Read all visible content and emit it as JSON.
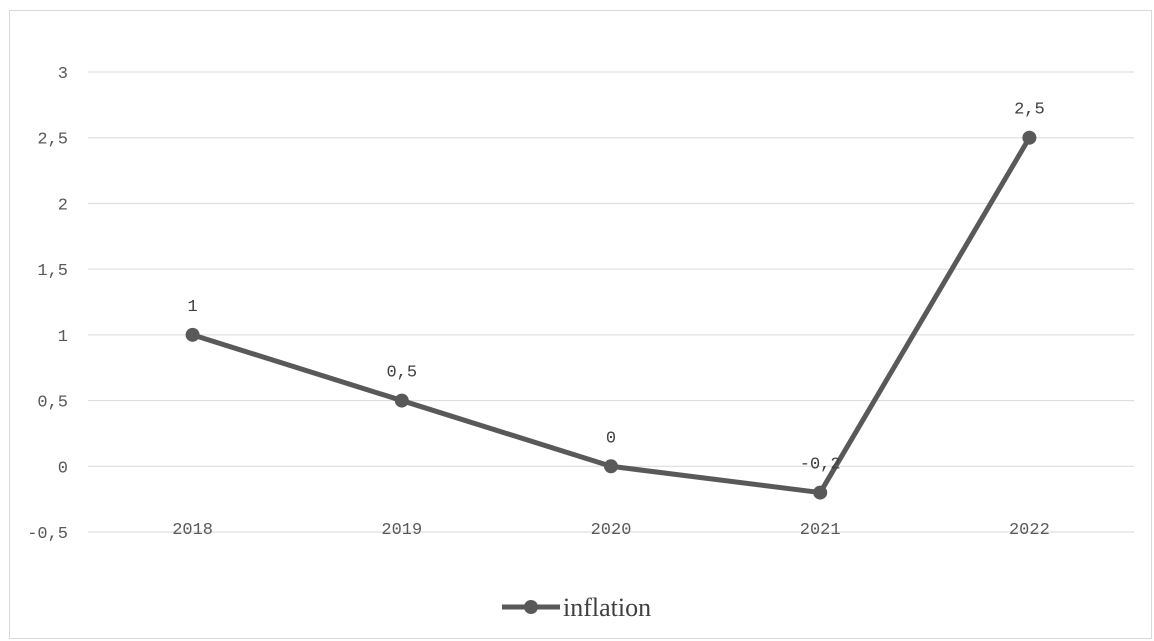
{
  "chart_data": {
    "type": "line",
    "title": "",
    "xlabel": "",
    "ylabel": "",
    "categories": [
      "2018",
      "2019",
      "2020",
      "2021",
      "2022"
    ],
    "series": [
      {
        "name": "inflation",
        "values": [
          1,
          0.5,
          0,
          -0.2,
          2.5
        ],
        "data_labels": [
          "1",
          "0,5",
          "0",
          "-0,2",
          "2,5"
        ],
        "color": "#595959"
      }
    ],
    "ylim": [
      -0.5,
      3
    ],
    "y_ticks": [
      3,
      2.5,
      2,
      1.5,
      1,
      0.5,
      0,
      -0.5
    ],
    "y_tick_labels": [
      "3",
      "2,5",
      "2",
      "1,5",
      "1",
      "0,5",
      "0",
      "-0,5"
    ],
    "grid": true,
    "legend_position": "bottom"
  },
  "colors": {
    "series": "#595959",
    "grid": "#d9d9d9",
    "axis_text": "#595959"
  }
}
